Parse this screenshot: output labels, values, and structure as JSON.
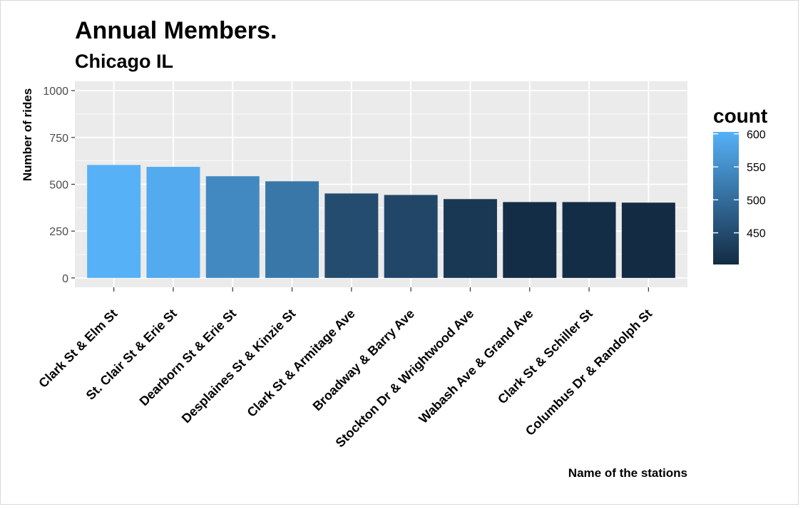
{
  "chart_data": {
    "type": "bar",
    "title": "Annual Members.",
    "subtitle": "Chicago IL",
    "xlabel": "Name of the stations",
    "ylabel": "Number of rides",
    "categories": [
      "Clark St & Elm St",
      "St. Clair St & Erie St",
      "Dearborn St & Erie St",
      "Desplaines St & Kinzie St",
      "Clark St & Armitage Ave",
      "Broadway & Barry Ave",
      "Stockton Dr & Wrightwood Ave",
      "Wabash Ave & Grand Ave",
      "Clark St & Schiller St",
      "Columbus Dr & Randolph St"
    ],
    "values": [
      603,
      593,
      543,
      516,
      451,
      443,
      421,
      405,
      405,
      402
    ],
    "ylim": [
      -50,
      1050
    ],
    "yticks": [
      0,
      250,
      500,
      750,
      1000
    ],
    "grid": true,
    "legend": {
      "title": "count",
      "placement": "right",
      "range": [
        402,
        603
      ],
      "ticks": [
        450,
        500,
        550,
        600
      ],
      "color_low": "#132B43",
      "color_high": "#56B1F7"
    },
    "colors": {
      "panel_background": "#EBEBEB",
      "grid": "#FFFFFF"
    }
  }
}
